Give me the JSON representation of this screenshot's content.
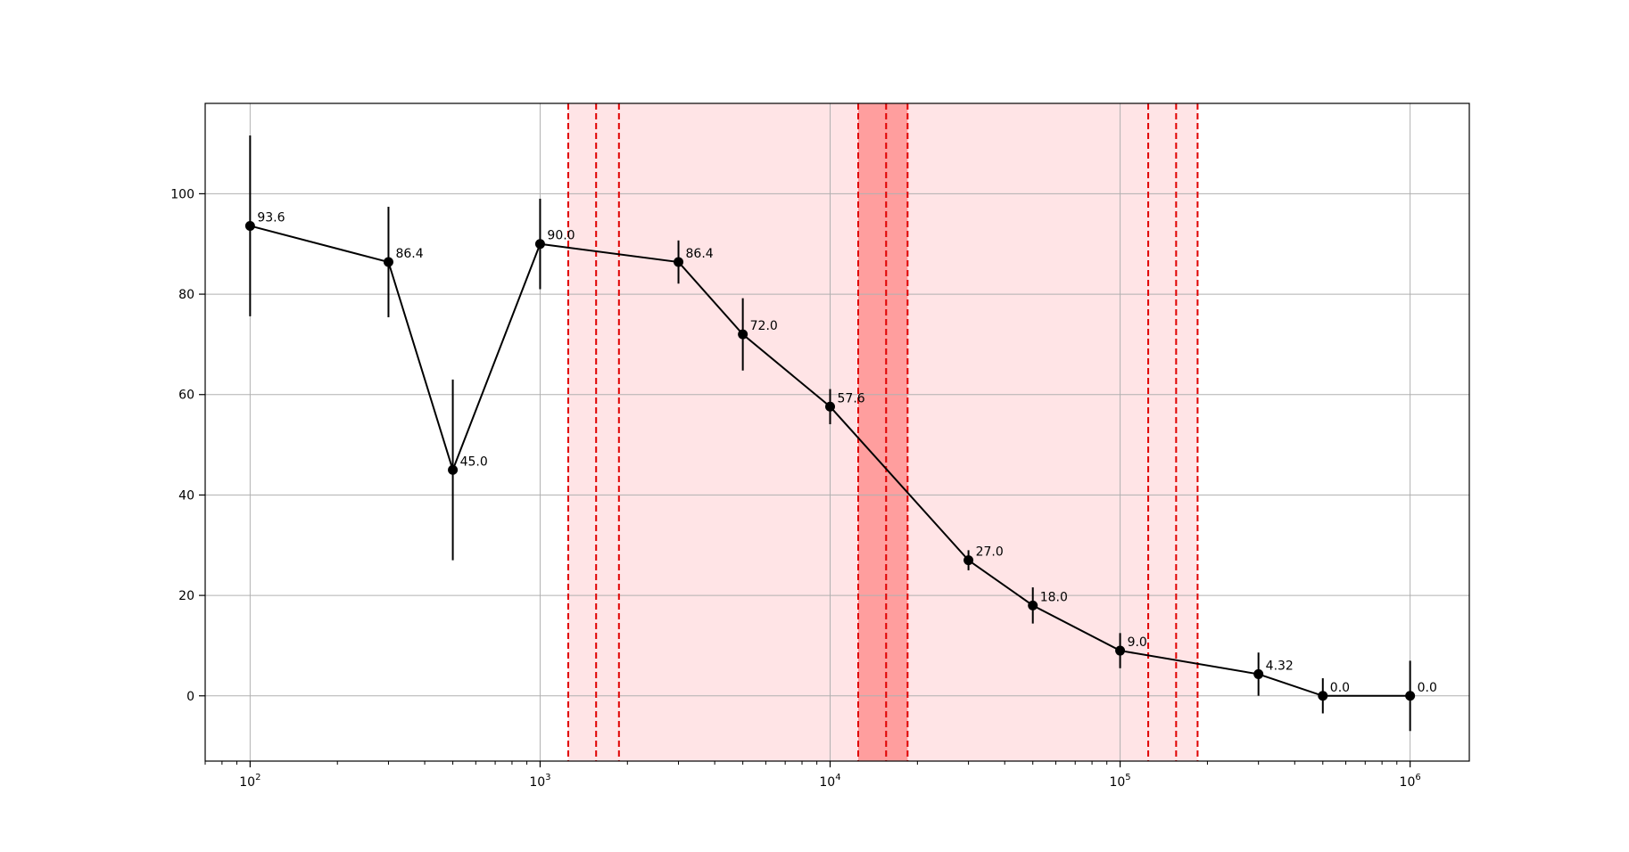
{
  "chart_data": {
    "type": "line",
    "title": "",
    "xlabel": "",
    "ylabel": "",
    "x_scale": "log",
    "xlim": [
      70,
      1600000
    ],
    "ylim": [
      -13,
      118
    ],
    "grid": true,
    "colors": {
      "series": "#000000",
      "band_outer": "#ffe4e6",
      "band_core": "#ff9e9e",
      "band_line": "#e00000",
      "grid": "#b0b0b0"
    },
    "x_ticks": [
      {
        "value": 100,
        "base": "10",
        "exp": "2"
      },
      {
        "value": 1000,
        "base": "10",
        "exp": "3"
      },
      {
        "value": 10000,
        "base": "10",
        "exp": "4"
      },
      {
        "value": 100000,
        "base": "10",
        "exp": "5"
      },
      {
        "value": 1000000,
        "base": "10",
        "exp": "6"
      }
    ],
    "y_ticks": [
      {
        "value": 0,
        "label": "0"
      },
      {
        "value": 20,
        "label": "20"
      },
      {
        "value": 40,
        "label": "40"
      },
      {
        "value": 60,
        "label": "60"
      },
      {
        "value": 80,
        "label": "80"
      },
      {
        "value": 100,
        "label": "100"
      }
    ],
    "series": [
      {
        "points": [
          {
            "x": 100,
            "y": 93.6,
            "err": 18.0,
            "label": "93.6"
          },
          {
            "x": 300,
            "y": 86.4,
            "err": 11.0,
            "label": "86.4"
          },
          {
            "x": 500,
            "y": 45.0,
            "err": 18.0,
            "label": "45.0"
          },
          {
            "x": 1000,
            "y": 90.0,
            "err": 9.0,
            "label": "90.0"
          },
          {
            "x": 3000,
            "y": 86.4,
            "err": 4.3,
            "label": "86.4"
          },
          {
            "x": 5000,
            "y": 72.0,
            "err": 7.2,
            "label": "72.0"
          },
          {
            "x": 10000,
            "y": 57.6,
            "err": 3.5,
            "label": "57.6"
          },
          {
            "x": 30000,
            "y": 27.0,
            "err": 2.0,
            "label": "27.0"
          },
          {
            "x": 50000,
            "y": 18.0,
            "err": 3.6,
            "label": "18.0"
          },
          {
            "x": 100000,
            "y": 9.0,
            "err": 3.5,
            "label": "9.0"
          },
          {
            "x": 300000,
            "y": 4.32,
            "err": 4.3,
            "label": "4.32"
          },
          {
            "x": 500000,
            "y": 0.0,
            "err": 3.5,
            "label": "0.0"
          },
          {
            "x": 1000000,
            "y": 0.0,
            "err": 7.0,
            "label": "0.0"
          }
        ]
      }
    ],
    "shaded_bands": [
      {
        "x_start": 1250,
        "x_end": 185000,
        "style": "outer"
      },
      {
        "x_start": 12500,
        "x_end": 18500,
        "style": "core"
      }
    ],
    "dashed_vlines": [
      1250,
      1560,
      1870,
      12500,
      15600,
      18500,
      125000,
      156000,
      185000
    ]
  }
}
